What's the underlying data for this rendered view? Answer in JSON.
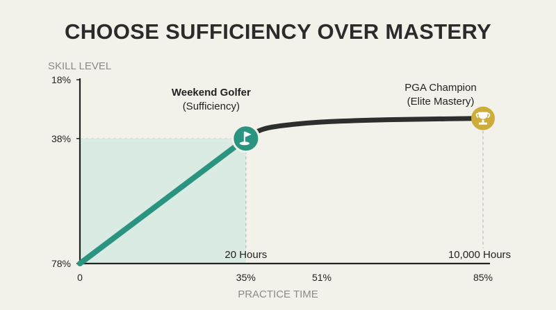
{
  "title": "CHOOSE SUFFICIENCY OVER MASTERY",
  "colors": {
    "background": "#f3f2ea",
    "curve": "#2c2f2e",
    "sufficiency": "#2b9480",
    "sufficiency_fill": "#d9ebe3",
    "mastery": "#ccac3a",
    "axis": "#222222",
    "guide": "#b8b8b8"
  },
  "chart_data": {
    "type": "line",
    "xlabel": "PRACTICE TIME",
    "ylabel": "SKILL LEVEL",
    "x_ticks": [
      {
        "label": "0",
        "value": 0
      },
      {
        "label": "35%",
        "value": 35
      },
      {
        "label": "51%",
        "value": 51
      },
      {
        "label": "85%",
        "value": 85
      }
    ],
    "y_ticks": [
      {
        "label": "18%",
        "value": 100
      },
      {
        "label": "38%",
        "value": 68
      },
      {
        "label": "78%",
        "value": 0
      }
    ],
    "xlim": [
      0,
      85
    ],
    "ylim": [
      0,
      100
    ],
    "series": [
      {
        "role": "learning-curve",
        "points": [
          [
            0,
            0
          ],
          [
            35,
            68
          ],
          [
            38,
            73
          ],
          [
            42,
            75
          ],
          [
            50,
            77
          ],
          [
            60,
            78
          ],
          [
            70,
            78.5
          ],
          [
            85,
            79
          ]
        ]
      }
    ],
    "markers": [
      {
        "id": "sufficiency",
        "x": 35,
        "y": 68,
        "title": "Weekend Golfer",
        "subtitle": "(Sufficiency)",
        "x_label": "20 Hours",
        "icon": "golf-flag-icon"
      },
      {
        "id": "mastery",
        "x": 85,
        "y": 79,
        "title": "PGA Champion",
        "subtitle": "(Elite Mastery)",
        "x_label": "10,000 Hours",
        "icon": "trophy-icon"
      }
    ],
    "shaded_region": {
      "x": [
        0,
        35
      ],
      "y": [
        0,
        68
      ]
    },
    "grid": false,
    "legend": "none"
  }
}
